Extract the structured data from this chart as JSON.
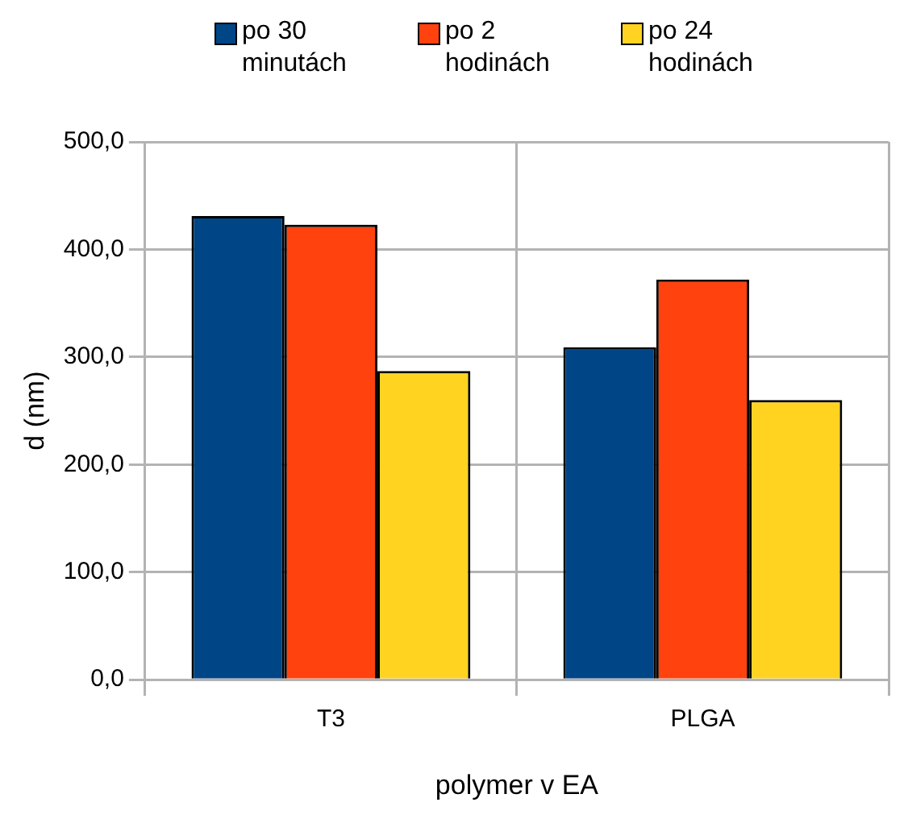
{
  "chart_data": {
    "type": "bar",
    "xlabel": "polymer v EA",
    "ylabel": "d (nm)",
    "categories": [
      "T3",
      "PLGA"
    ],
    "series": [
      {
        "name": "po 30 minutách",
        "color": "#004586",
        "values": [
          431,
          309
        ]
      },
      {
        "name": "po 2 hodinách",
        "color": "#ff420e",
        "values": [
          423,
          372
        ]
      },
      {
        "name": "po 24 hodinách",
        "color": "#ffd320",
        "values": [
          287,
          260
        ]
      }
    ],
    "ylim": [
      0,
      500
    ],
    "yticks": [
      {
        "value": 0,
        "label": "0,0"
      },
      {
        "value": 100,
        "label": "100,0"
      },
      {
        "value": 200,
        "label": "200,0"
      },
      {
        "value": 300,
        "label": "300,0"
      },
      {
        "value": 400,
        "label": "400,0"
      },
      {
        "value": 500,
        "label": "500,0"
      }
    ],
    "grid": true,
    "legend": "top"
  }
}
